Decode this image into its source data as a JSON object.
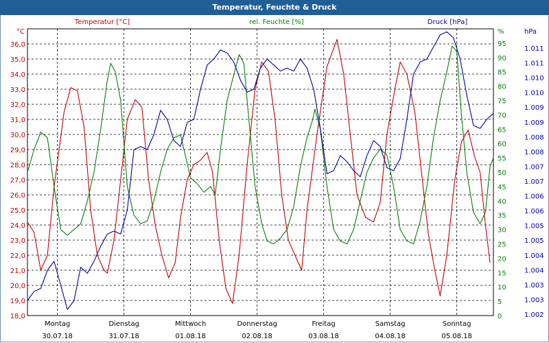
{
  "window": {
    "title": "Temperatur, Feuchte & Druck"
  },
  "legend": {
    "temp": "Temperatur [°C]",
    "hum": "rel. Feuchte [%]",
    "press": "Druck [hPa]"
  },
  "colors": {
    "temp": "#c00000",
    "hum": "#008000",
    "press": "#0000a0",
    "title_bg": "#1f5f96"
  },
  "chart_data": {
    "type": "line",
    "title": "Temperatur, Feuchte & Druck",
    "x_days": [
      {
        "day": "Montag",
        "date": "30.07.18"
      },
      {
        "day": "Dienstag",
        "date": "31.07.18"
      },
      {
        "day": "Mittwoch",
        "date": "01.08.18"
      },
      {
        "day": "Donnerstag",
        "date": "02.08.18"
      },
      {
        "day": "Freitag",
        "date": "03.08.18"
      },
      {
        "day": "Samstag",
        "date": "04.08.18"
      },
      {
        "day": "Sonntag",
        "date": "05.08.18"
      }
    ],
    "left_axis": {
      "unit": "°C",
      "ylim": [
        18.0,
        37.0
      ],
      "ticks": [
        "36,0",
        "35,0",
        "34,0",
        "33,0",
        "32,0",
        "31,0",
        "30,0",
        "29,0",
        "28,0",
        "27,0",
        "26,0",
        "25,0",
        "24,0",
        "23,0",
        "22,0",
        "21,0",
        "20,0",
        "19,0",
        "18,0"
      ]
    },
    "humidity_axis": {
      "unit": "%",
      "ylim": [
        0,
        100
      ],
      "ticks": [
        "95",
        "90",
        "85",
        "80",
        "75",
        "70",
        "65",
        "60",
        "55",
        "50",
        "45",
        "40",
        "35",
        "30",
        "25",
        "20",
        "15",
        "10",
        "5",
        "0"
      ]
    },
    "pressure_axis": {
      "unit": "hPa",
      "ylim": [
        1002,
        1011.5
      ],
      "ticks": [
        "1.011",
        "1.011",
        "1.010",
        "1.010",
        "1.009",
        "1.009",
        "1.008",
        "1.008",
        "1.007",
        "1.007",
        "1.006",
        "1.006",
        "1.005",
        "1.005",
        "1.004",
        "1.004",
        "1.003",
        "1.003",
        "1.002"
      ]
    },
    "series": [
      {
        "name": "Temperatur [°C]",
        "axis": "temp",
        "values": [
          [
            0.0,
            24.2
          ],
          [
            0.1,
            23.5
          ],
          [
            0.2,
            21.0
          ],
          [
            0.3,
            22.0
          ],
          [
            0.4,
            26.5
          ],
          [
            0.55,
            31.5
          ],
          [
            0.65,
            33.1
          ],
          [
            0.75,
            32.9
          ],
          [
            0.85,
            30.5
          ],
          [
            0.95,
            25.0
          ],
          [
            1.05,
            22.0
          ],
          [
            1.15,
            21.0
          ],
          [
            1.2,
            20.8
          ],
          [
            1.3,
            23.0
          ],
          [
            1.4,
            27.0
          ],
          [
            1.5,
            31.0
          ],
          [
            1.62,
            32.3
          ],
          [
            1.72,
            31.8
          ],
          [
            1.82,
            27.0
          ],
          [
            1.92,
            24.0
          ],
          [
            2.02,
            22.0
          ],
          [
            2.12,
            20.5
          ],
          [
            2.22,
            21.5
          ],
          [
            2.3,
            24.5
          ],
          [
            2.4,
            27.0
          ],
          [
            2.5,
            28.0
          ],
          [
            2.6,
            28.3
          ],
          [
            2.7,
            28.8
          ],
          [
            2.78,
            27.5
          ],
          [
            2.88,
            23.0
          ],
          [
            2.98,
            19.8
          ],
          [
            3.08,
            18.8
          ],
          [
            3.18,
            22.0
          ],
          [
            3.3,
            28.0
          ],
          [
            3.42,
            33.0
          ],
          [
            3.52,
            34.8
          ],
          [
            3.62,
            34.2
          ],
          [
            3.72,
            31.0
          ],
          [
            3.82,
            26.0
          ],
          [
            3.92,
            23.0
          ],
          [
            4.02,
            22.0
          ],
          [
            4.12,
            21.0
          ],
          [
            4.2,
            25.0
          ],
          [
            4.35,
            30.0
          ],
          [
            4.5,
            34.5
          ],
          [
            4.65,
            36.3
          ],
          [
            4.75,
            34.0
          ],
          [
            4.85,
            30.0
          ],
          [
            4.95,
            26.0
          ],
          [
            5.08,
            24.5
          ],
          [
            5.2,
            24.2
          ],
          [
            5.3,
            25.5
          ],
          [
            5.4,
            30.0
          ],
          [
            5.52,
            33.0
          ],
          [
            5.6,
            34.8
          ],
          [
            5.7,
            34.0
          ],
          [
            5.82,
            31.5
          ],
          [
            5.92,
            27.5
          ],
          [
            6.02,
            23.5
          ],
          [
            6.12,
            21.0
          ],
          [
            6.2,
            19.3
          ],
          [
            6.3,
            22.0
          ],
          [
            6.42,
            27.0
          ],
          [
            6.52,
            29.5
          ],
          [
            6.62,
            30.3
          ],
          [
            6.72,
            28.5
          ],
          [
            6.8,
            27.5
          ],
          [
            6.88,
            24.0
          ],
          [
            6.95,
            21.5
          ]
        ]
      },
      {
        "name": "rel. Feuchte [%]",
        "axis": "hum",
        "values": [
          [
            0.0,
            50
          ],
          [
            0.1,
            58
          ],
          [
            0.2,
            64
          ],
          [
            0.3,
            62
          ],
          [
            0.4,
            45
          ],
          [
            0.5,
            30
          ],
          [
            0.6,
            28
          ],
          [
            0.7,
            30
          ],
          [
            0.8,
            32
          ],
          [
            0.9,
            40
          ],
          [
            1.0,
            50
          ],
          [
            1.1,
            65
          ],
          [
            1.2,
            82
          ],
          [
            1.25,
            88
          ],
          [
            1.32,
            85
          ],
          [
            1.4,
            75
          ],
          [
            1.5,
            45
          ],
          [
            1.6,
            35
          ],
          [
            1.7,
            32
          ],
          [
            1.8,
            33
          ],
          [
            1.9,
            40
          ],
          [
            2.0,
            50
          ],
          [
            2.1,
            58
          ],
          [
            2.2,
            62
          ],
          [
            2.3,
            63
          ],
          [
            2.38,
            55
          ],
          [
            2.45,
            48
          ],
          [
            2.55,
            46
          ],
          [
            2.65,
            43
          ],
          [
            2.75,
            45
          ],
          [
            2.82,
            42
          ],
          [
            2.9,
            58
          ],
          [
            3.0,
            75
          ],
          [
            3.1,
            84
          ],
          [
            3.18,
            91
          ],
          [
            3.25,
            88
          ],
          [
            3.32,
            70
          ],
          [
            3.42,
            45
          ],
          [
            3.52,
            32
          ],
          [
            3.6,
            26
          ],
          [
            3.7,
            25
          ],
          [
            3.8,
            27
          ],
          [
            3.9,
            30
          ],
          [
            4.0,
            38
          ],
          [
            4.1,
            52
          ],
          [
            4.2,
            62
          ],
          [
            4.28,
            68
          ],
          [
            4.32,
            72
          ],
          [
            4.4,
            65
          ],
          [
            4.5,
            45
          ],
          [
            4.6,
            30
          ],
          [
            4.7,
            26
          ],
          [
            4.8,
            25
          ],
          [
            4.9,
            30
          ],
          [
            5.0,
            40
          ],
          [
            5.1,
            50
          ],
          [
            5.2,
            55
          ],
          [
            5.3,
            58
          ],
          [
            5.4,
            56
          ],
          [
            5.5,
            45
          ],
          [
            5.6,
            30
          ],
          [
            5.7,
            26
          ],
          [
            5.8,
            25
          ],
          [
            5.9,
            33
          ],
          [
            6.0,
            45
          ],
          [
            6.1,
            62
          ],
          [
            6.2,
            75
          ],
          [
            6.3,
            85
          ],
          [
            6.38,
            94
          ],
          [
            6.45,
            92
          ],
          [
            6.52,
            70
          ],
          [
            6.6,
            50
          ],
          [
            6.7,
            36
          ],
          [
            6.8,
            32
          ],
          [
            6.88,
            36
          ],
          [
            6.95,
            52
          ],
          [
            7.0,
            55
          ]
        ]
      },
      {
        "name": "Druck [hPa]",
        "axis": "press",
        "values": [
          [
            0.0,
            1002.5
          ],
          [
            0.1,
            1002.8
          ],
          [
            0.2,
            1002.9
          ],
          [
            0.3,
            1003.5
          ],
          [
            0.4,
            1003.8
          ],
          [
            0.5,
            1003.0
          ],
          [
            0.6,
            1002.2
          ],
          [
            0.7,
            1002.5
          ],
          [
            0.8,
            1003.6
          ],
          [
            0.9,
            1003.4
          ],
          [
            1.0,
            1003.8
          ],
          [
            1.1,
            1004.3
          ],
          [
            1.2,
            1004.7
          ],
          [
            1.3,
            1004.8
          ],
          [
            1.4,
            1004.7
          ],
          [
            1.5,
            1005.5
          ],
          [
            1.6,
            1007.5
          ],
          [
            1.7,
            1007.6
          ],
          [
            1.8,
            1007.5
          ],
          [
            1.9,
            1008.0
          ],
          [
            2.0,
            1008.8
          ],
          [
            2.1,
            1008.5
          ],
          [
            2.2,
            1007.8
          ],
          [
            2.3,
            1007.6
          ],
          [
            2.4,
            1008.4
          ],
          [
            2.5,
            1008.5
          ],
          [
            2.6,
            1009.5
          ],
          [
            2.7,
            1010.3
          ],
          [
            2.8,
            1010.5
          ],
          [
            2.9,
            1010.8
          ],
          [
            3.0,
            1010.7
          ],
          [
            3.1,
            1010.4
          ],
          [
            3.2,
            1009.8
          ],
          [
            3.3,
            1009.4
          ],
          [
            3.4,
            1009.5
          ],
          [
            3.5,
            1010.2
          ],
          [
            3.6,
            1010.5
          ],
          [
            3.7,
            1010.3
          ],
          [
            3.8,
            1010.1
          ],
          [
            3.9,
            1010.2
          ],
          [
            4.0,
            1010.1
          ],
          [
            4.1,
            1010.5
          ],
          [
            4.2,
            1010.2
          ],
          [
            4.3,
            1009.5
          ],
          [
            4.4,
            1008.2
          ],
          [
            4.5,
            1006.7
          ],
          [
            4.6,
            1006.8
          ],
          [
            4.7,
            1007.3
          ],
          [
            4.8,
            1007.1
          ],
          [
            4.9,
            1006.8
          ],
          [
            5.0,
            1006.6
          ],
          [
            5.1,
            1007.3
          ],
          [
            5.2,
            1007.8
          ],
          [
            5.3,
            1007.6
          ],
          [
            5.4,
            1006.9
          ],
          [
            5.5,
            1006.8
          ],
          [
            5.6,
            1007.2
          ],
          [
            5.7,
            1008.5
          ],
          [
            5.8,
            1010.0
          ],
          [
            5.9,
            1010.4
          ],
          [
            6.0,
            1010.5
          ],
          [
            6.1,
            1010.9
          ],
          [
            6.2,
            1011.3
          ],
          [
            6.3,
            1011.4
          ],
          [
            6.4,
            1011.2
          ],
          [
            6.5,
            1010.5
          ],
          [
            6.6,
            1009.3
          ],
          [
            6.7,
            1008.3
          ],
          [
            6.8,
            1008.2
          ],
          [
            6.9,
            1008.5
          ],
          [
            7.0,
            1008.7
          ]
        ]
      }
    ]
  }
}
